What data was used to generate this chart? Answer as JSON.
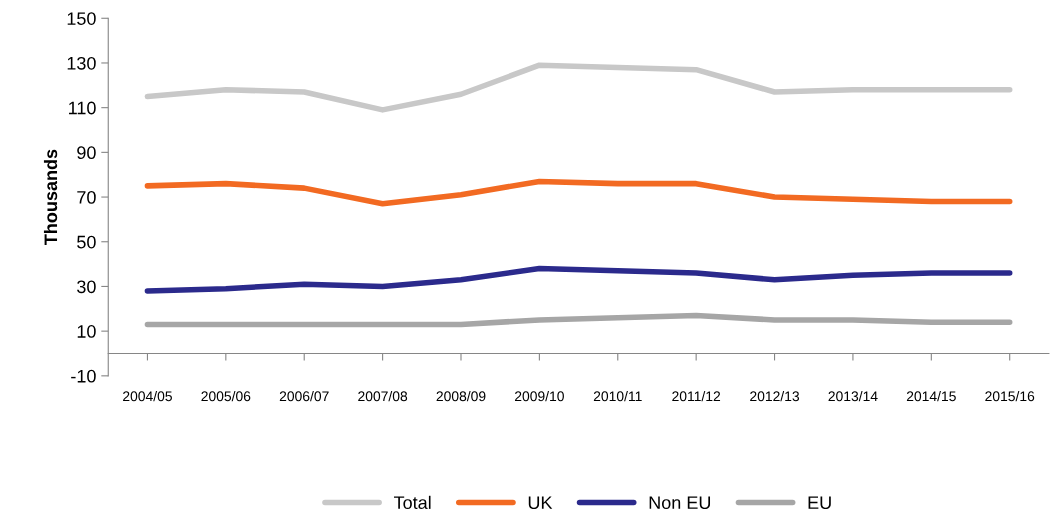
{
  "chart_data": {
    "type": "line",
    "ylabel": "Thousands",
    "categories": [
      "2004/05",
      "2005/06",
      "2006/07",
      "2007/08",
      "2008/09",
      "2009/10",
      "2010/11",
      "2011/12",
      "2012/13",
      "2013/14",
      "2014/15",
      "2015/16"
    ],
    "series": [
      {
        "name": "Total",
        "color": "#c8c8c8",
        "values": [
          115,
          118,
          117,
          109,
          116,
          129,
          128,
          127,
          117,
          118,
          118,
          118
        ]
      },
      {
        "name": "UK",
        "color": "#f26a22",
        "values": [
          75,
          76,
          74,
          67,
          71,
          77,
          76,
          76,
          70,
          69,
          68,
          68
        ]
      },
      {
        "name": "Non EU",
        "color": "#2b2a8c",
        "values": [
          28,
          29,
          31,
          30,
          33,
          38,
          37,
          36,
          33,
          35,
          36,
          36
        ]
      },
      {
        "name": "EU",
        "color": "#a6a6a6",
        "values": [
          13,
          13,
          13,
          13,
          13,
          15,
          16,
          17,
          15,
          15,
          14,
          14
        ]
      }
    ],
    "ylim": [
      -10,
      150
    ],
    "yticks": [
      -10,
      10,
      30,
      50,
      70,
      90,
      110,
      130,
      150
    ],
    "grid": false,
    "legend": "bottom",
    "line_style": "solid",
    "marker": "none"
  }
}
